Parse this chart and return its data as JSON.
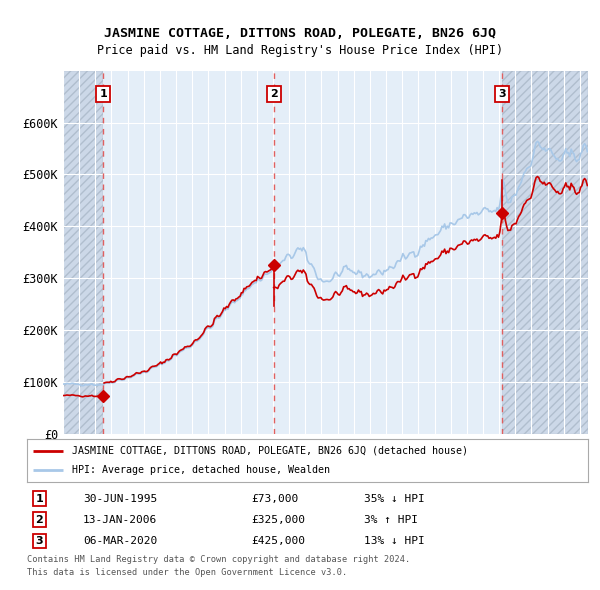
{
  "title": "JASMINE COTTAGE, DITTONS ROAD, POLEGATE, BN26 6JQ",
  "subtitle": "Price paid vs. HM Land Registry's House Price Index (HPI)",
  "legend_line1": "JASMINE COTTAGE, DITTONS ROAD, POLEGATE, BN26 6JQ (detached house)",
  "legend_line2": "HPI: Average price, detached house, Wealden",
  "footer1": "Contains HM Land Registry data © Crown copyright and database right 2024.",
  "footer2": "This data is licensed under the Open Government Licence v3.0.",
  "sale_points": [
    {
      "label": "1",
      "date": "30-JUN-1995",
      "price": 73000,
      "pct": "35%",
      "dir": "↓",
      "x": 1995.5
    },
    {
      "label": "2",
      "date": "13-JAN-2006",
      "price": 325000,
      "pct": "3%",
      "dir": "↑",
      "x": 2006.04
    },
    {
      "label": "3",
      "date": "06-MAR-2020",
      "price": 425000,
      "pct": "13%",
      "dir": "↓",
      "x": 2020.19
    }
  ],
  "hpi_color": "#a8c8e8",
  "sale_color": "#cc0000",
  "vline_color": "#e06060",
  "plot_bg": "#dce8f4",
  "ylim": [
    0,
    700000
  ],
  "yticks": [
    0,
    100000,
    200000,
    300000,
    400000,
    500000,
    600000
  ],
  "xlim_left": 1993.0,
  "xlim_right": 2025.5
}
